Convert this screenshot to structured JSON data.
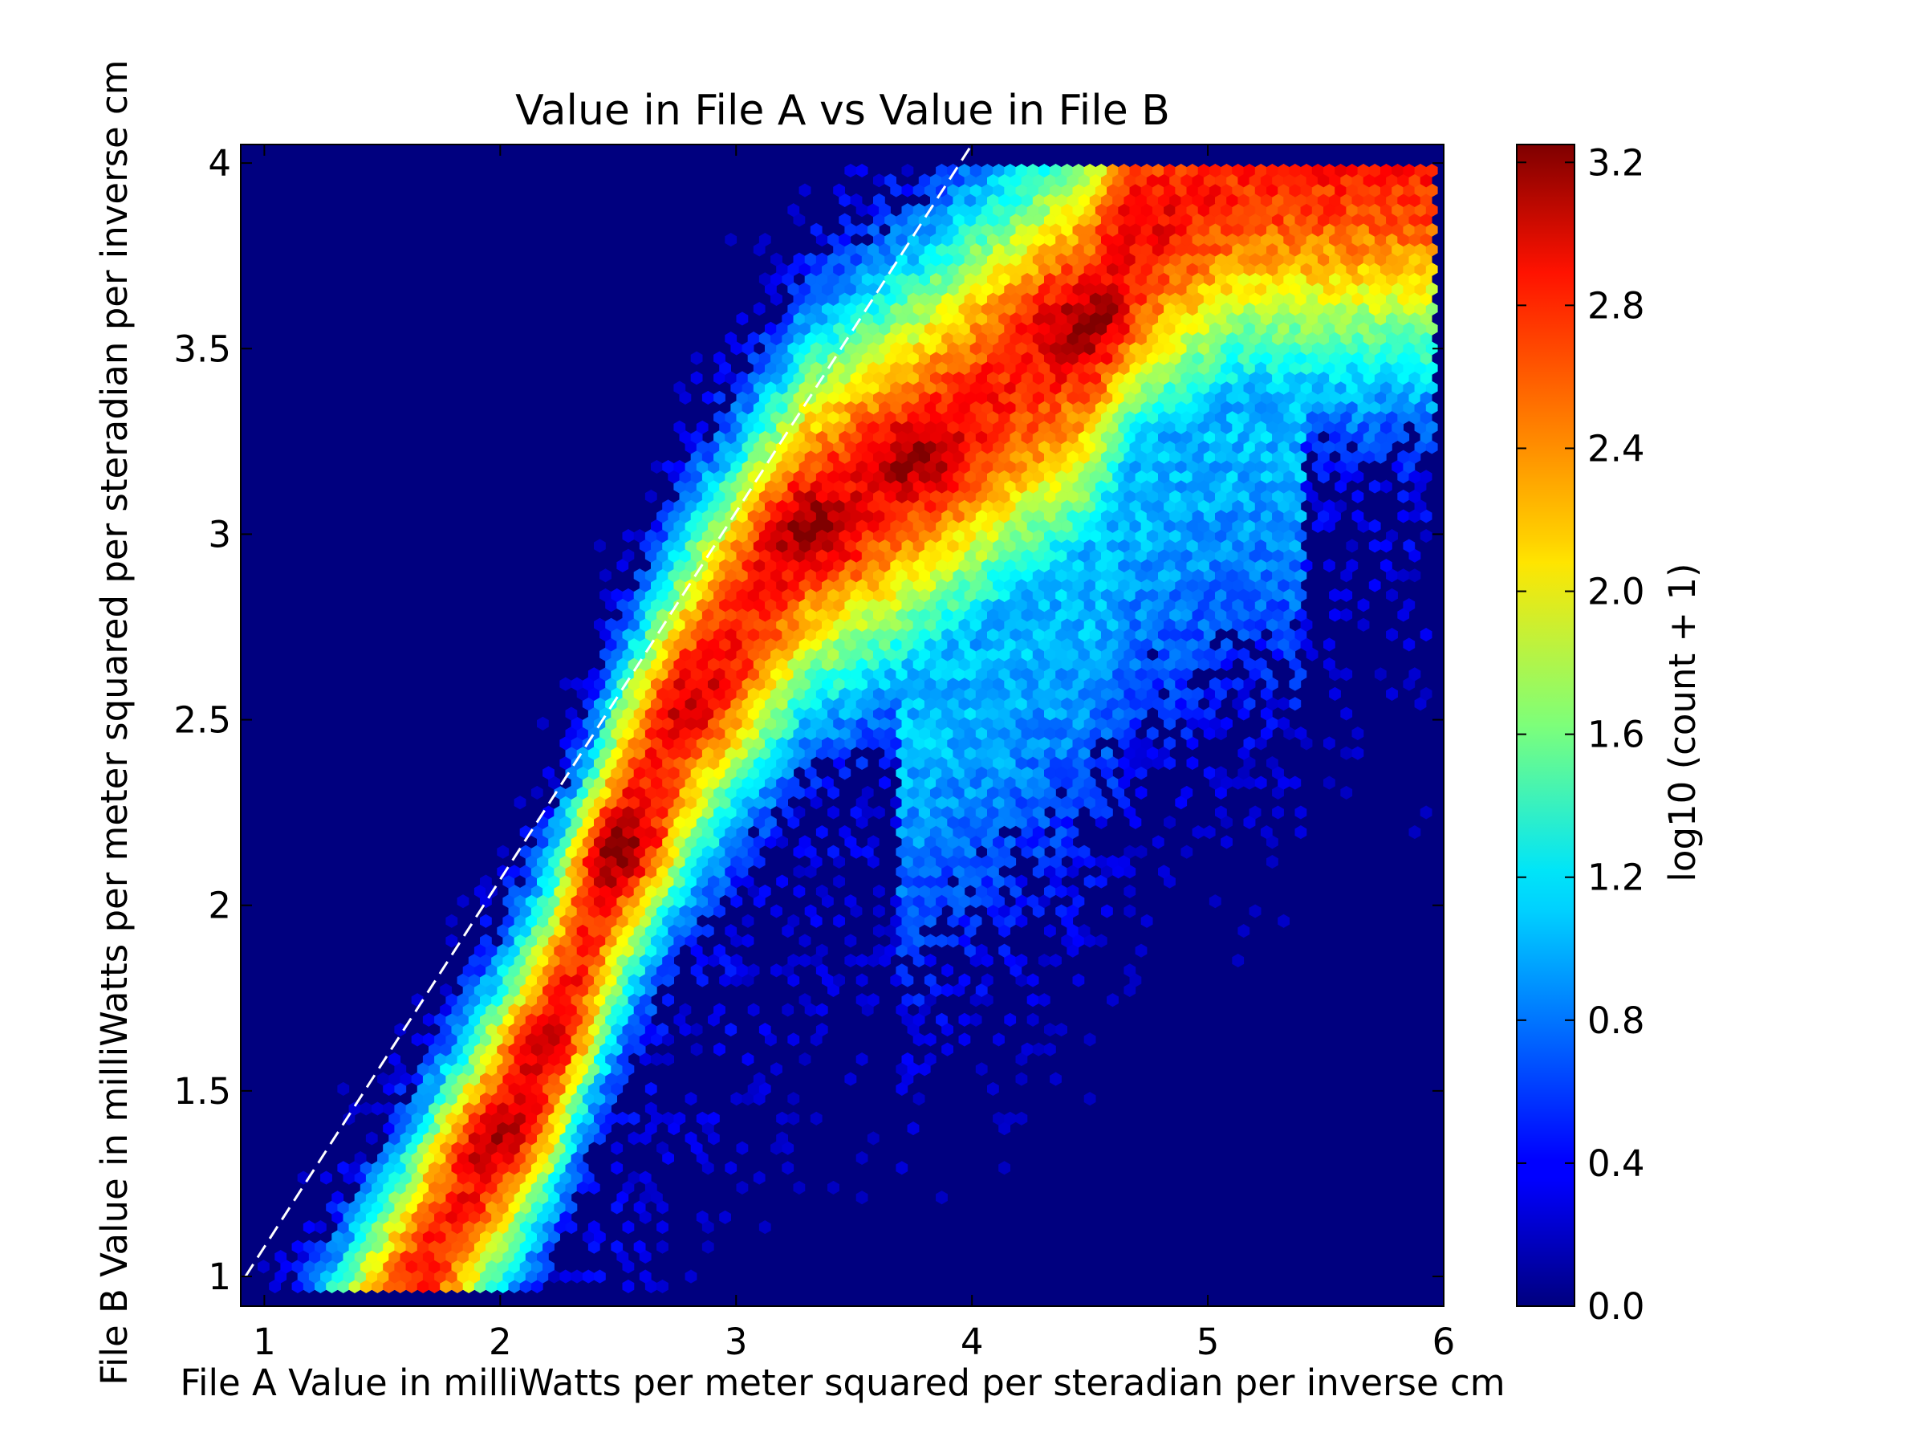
{
  "chart_data": {
    "type": "heatmap",
    "subtype": "hexbin",
    "title": "Value in File A vs Value in File B",
    "xlabel": "File A Value in milliWatts per meter squared per steradian per inverse cm",
    "ylabel": "File B Value in milliWatts per meter squared per steradian per inverse cm",
    "xlim": [
      0.9,
      6.0
    ],
    "ylim": [
      0.92,
      4.05
    ],
    "x_ticks": [
      1,
      2,
      3,
      4,
      5,
      6
    ],
    "y_ticks": [
      1,
      1.5,
      2,
      2.5,
      3,
      3.5,
      4
    ],
    "x_tick_labels": [
      "1",
      "2",
      "3",
      "4",
      "5",
      "6"
    ],
    "y_tick_labels": [
      "1",
      "1.5",
      "2",
      "2.5",
      "3",
      "3.5",
      "4"
    ],
    "background_color": "#00007f",
    "colormap": "jet",
    "colorbar": {
      "label": "log10 (count + 1)",
      "range": [
        0.0,
        3.25
      ],
      "ticks": [
        0.0,
        0.4,
        0.8,
        1.2,
        1.6,
        2.0,
        2.4,
        2.8,
        3.2
      ],
      "tick_labels": [
        "0.0",
        "0.4",
        "0.8",
        "1.2",
        "1.6",
        "2.0",
        "2.4",
        "2.8",
        "3.2"
      ]
    },
    "reference_line": {
      "style": "dashed",
      "color": "#ffffff",
      "from": [
        0.92,
        1.0
      ],
      "to": [
        4.0,
        4.05
      ]
    },
    "density_ridge": [
      {
        "x": 2.0,
        "y": 1.38,
        "log_count": 3.1
      },
      {
        "x": 2.2,
        "y": 1.62,
        "log_count": 3.05
      },
      {
        "x": 2.5,
        "y": 2.15,
        "log_count": 3.25
      },
      {
        "x": 2.8,
        "y": 2.55,
        "log_count": 3.0
      },
      {
        "x": 3.3,
        "y": 3.02,
        "log_count": 3.2
      },
      {
        "x": 3.75,
        "y": 3.2,
        "log_count": 3.15
      },
      {
        "x": 4.5,
        "y": 3.57,
        "log_count": 3.2
      },
      {
        "x": 4.7,
        "y": 3.83,
        "log_count": 2.9
      }
    ],
    "grid": false
  }
}
